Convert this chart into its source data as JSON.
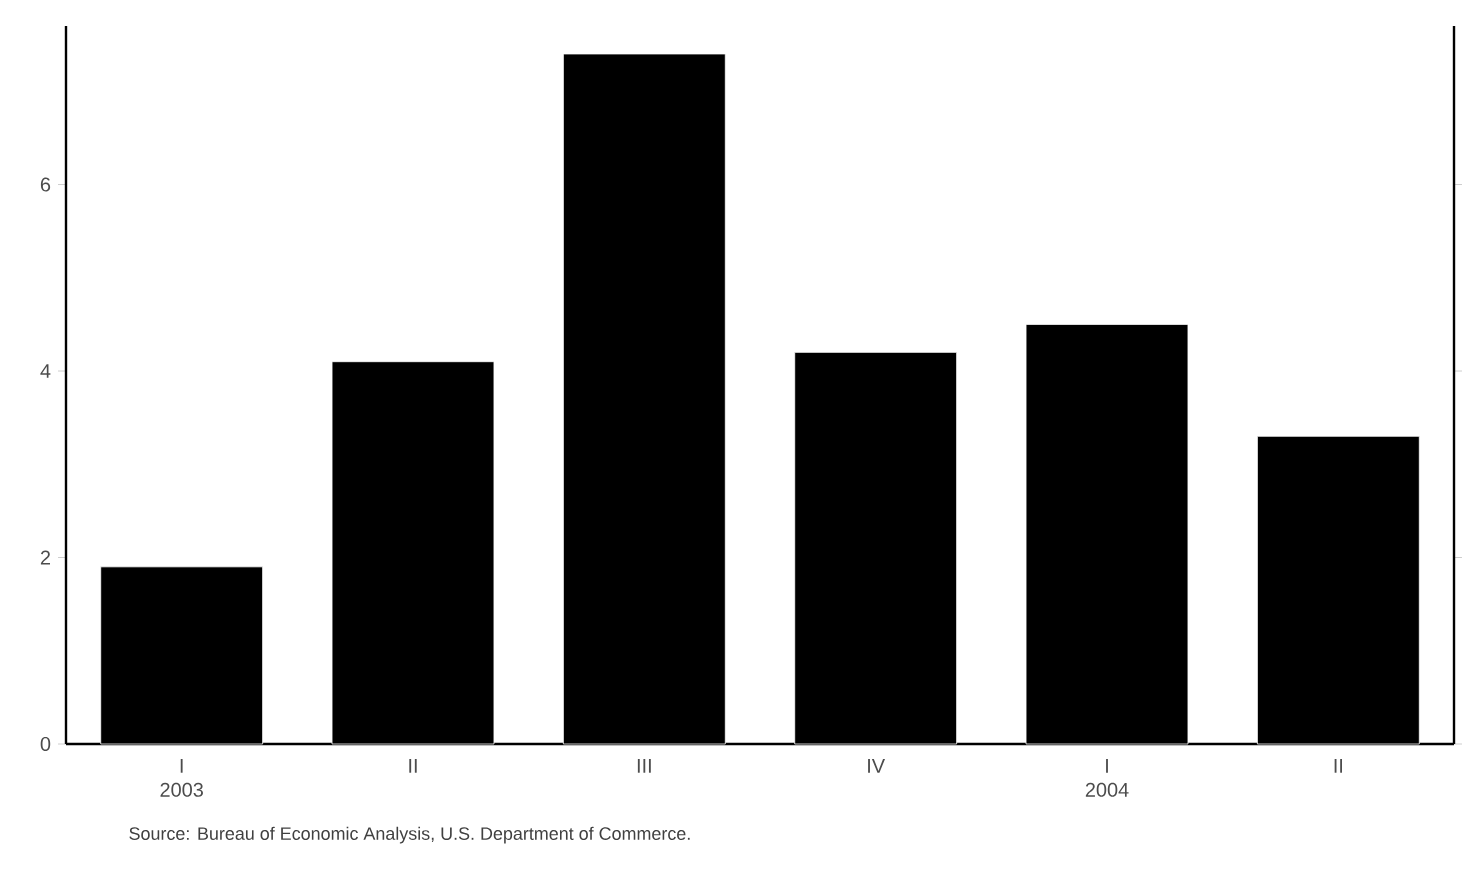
{
  "chart_data": {
    "type": "bar",
    "categories": [
      "I 2003",
      "II",
      "III",
      "IV",
      "I 2004",
      "II"
    ],
    "values": [
      1.9,
      4.1,
      7.4,
      4.2,
      4.5,
      3.3
    ],
    "color": "#000000",
    "ylim": [
      0,
      7.7
    ],
    "yticks": [
      0,
      2,
      4,
      6
    ],
    "grid": false,
    "annotations": [
      "Source: Bureau of Economic Analysis, U.S. Department of Commerce."
    ]
  }
}
